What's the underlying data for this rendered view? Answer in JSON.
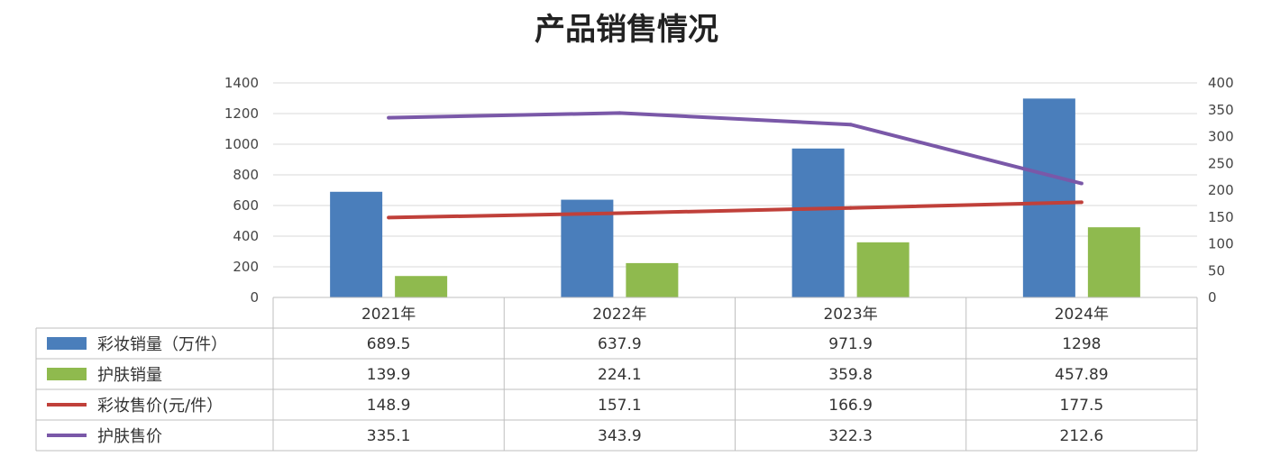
{
  "chart_data": {
    "type": "bar",
    "title": "产品销售情况",
    "categories": [
      "2021年",
      "2022年",
      "2023年",
      "2024年"
    ],
    "y_left": {
      "min": 0,
      "max": 1400,
      "ticks": [
        "0",
        "200",
        "400",
        "600",
        "800",
        "1000",
        "1200",
        "1400"
      ]
    },
    "y_right": {
      "min": 0,
      "max": 400,
      "ticks": [
        "0",
        "50",
        "100",
        "150",
        "200",
        "250",
        "300",
        "350",
        "400"
      ]
    },
    "grid": true,
    "legend": "data-table",
    "series": [
      {
        "name": "彩妆销量（万件）",
        "type": "bar",
        "axis": "left",
        "color": "#4a7ebb",
        "values": [
          689.5,
          637.9,
          971.9,
          1298
        ],
        "labels": [
          "689.5",
          "637.9",
          "971.9",
          "1298"
        ]
      },
      {
        "name": "护肤销量",
        "type": "bar",
        "axis": "left",
        "color": "#8fba4e",
        "values": [
          139.9,
          224.1,
          359.8,
          457.89
        ],
        "labels": [
          "139.9",
          "224.1",
          "359.8",
          "457.89"
        ]
      },
      {
        "name": "彩妆售价(元/件）",
        "type": "line",
        "axis": "right",
        "color": "#c0403a",
        "values": [
          148.9,
          157.1,
          166.9,
          177.5
        ],
        "labels": [
          "148.9",
          "157.1",
          "166.9",
          "177.5"
        ]
      },
      {
        "name": "护肤售价",
        "type": "line",
        "axis": "right",
        "color": "#7a58a8",
        "values": [
          335.1,
          343.9,
          322.3,
          212.6
        ],
        "labels": [
          "335.1",
          "343.9",
          "322.3",
          "212.6"
        ]
      }
    ]
  }
}
